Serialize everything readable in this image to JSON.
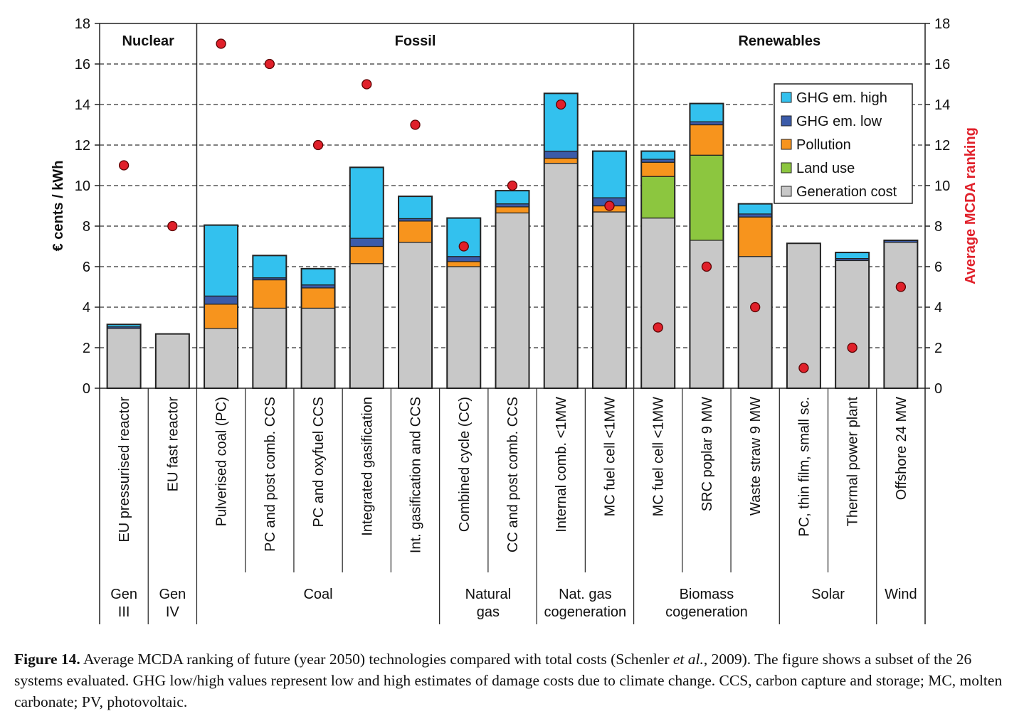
{
  "chart_data": {
    "type": "bar",
    "stacked": true,
    "ylabel_left": "€ cents / kWh",
    "ylabel_right": "Average MCDA ranking",
    "ylim": [
      0,
      18
    ],
    "yticks": [
      0,
      2,
      4,
      6,
      8,
      10,
      12,
      14,
      16,
      18
    ],
    "grid": "horizontal dashed",
    "legend_position": "top-right",
    "sections": [
      {
        "label": "Nuclear",
        "start": 0,
        "end": 1
      },
      {
        "label": "Fossil",
        "start": 2,
        "end": 10
      },
      {
        "label": "Renewables",
        "start": 11,
        "end": 16
      }
    ],
    "groups": [
      {
        "line1": "Gen",
        "line2": "III",
        "start": 0,
        "end": 0
      },
      {
        "line1": "Gen",
        "line2": "IV",
        "start": 1,
        "end": 1
      },
      {
        "line1": "Coal",
        "line2": "",
        "start": 2,
        "end": 6
      },
      {
        "line1": "Natural",
        "line2": "gas",
        "start": 7,
        "end": 8
      },
      {
        "line1": "Nat. gas",
        "line2": "cogeneration",
        "start": 9,
        "end": 10
      },
      {
        "line1": "Biomass",
        "line2": "cogeneration",
        "start": 11,
        "end": 13
      },
      {
        "line1": "Solar",
        "line2": "",
        "start": 14,
        "end": 15
      },
      {
        "line1": "Wind",
        "line2": "",
        "start": 16,
        "end": 16
      }
    ],
    "categories": [
      "EU pressurised reactor",
      "EU fast reactor",
      "Pulverised coal (PC)",
      "PC and post comb. CCS",
      "PC and oxyfuel CCS",
      "Integrated gasification",
      "Int. gasification and CCS",
      "Combined cycle (CC)",
      "CC and post comb. CCS",
      "Internal comb. <1MW",
      "MC fuel cell <1MW",
      "MC fuel cell <1MW",
      "SRC poplar 9 MW",
      "Waste straw 9 MW",
      "PC, thin film, small sc.",
      "Thermal power plant",
      "Offshore 24 MW"
    ],
    "series": [
      {
        "name": "Generation cost",
        "color": "#c8c8c8",
        "values": [
          2.95,
          2.68,
          2.95,
          3.95,
          3.95,
          6.15,
          7.2,
          6.0,
          8.65,
          11.1,
          8.7,
          8.4,
          7.3,
          6.5,
          7.15,
          6.3,
          7.2
        ]
      },
      {
        "name": "Land use",
        "color": "#8cc63f",
        "values": [
          0,
          0,
          0,
          0,
          0,
          0,
          0,
          0,
          0,
          0,
          0,
          2.05,
          4.2,
          0,
          0,
          0,
          0
        ]
      },
      {
        "name": "Pollution",
        "color": "#f7941d",
        "values": [
          0,
          0,
          1.2,
          1.4,
          1.0,
          0.85,
          1.05,
          0.25,
          0.3,
          0.25,
          0.3,
          0.7,
          1.5,
          1.95,
          0,
          0,
          0
        ]
      },
      {
        "name": "GHG em. low",
        "color": "#3b5ba9",
        "values": [
          0.08,
          0,
          0.4,
          0.1,
          0.15,
          0.4,
          0.12,
          0.25,
          0.15,
          0.35,
          0.4,
          0.15,
          0.15,
          0.15,
          0,
          0.1,
          0.1
        ]
      },
      {
        "name": "GHG em. high",
        "color": "#33c1ee",
        "values": [
          0.12,
          0,
          3.5,
          1.1,
          0.8,
          3.5,
          1.1,
          1.9,
          0.65,
          2.85,
          2.3,
          0.4,
          0.9,
          0.5,
          0,
          0.3,
          0
        ]
      }
    ],
    "legend_order": [
      "GHG em. high",
      "GHG em. low",
      "Pollution",
      "Land use",
      "Generation cost"
    ],
    "ranking": {
      "name": "Average MCDA ranking",
      "color": "#e0202a",
      "values": [
        11,
        8,
        17,
        16,
        12,
        15,
        13,
        7,
        10,
        14,
        9,
        3,
        6,
        4,
        1,
        2,
        5
      ]
    }
  },
  "caption": {
    "label": "Figure 14.",
    "text_a": " Average MCDA ranking of future (year 2050) technologies compared with total costs (Schenler ",
    "text_italic": "et al.",
    "text_b": ", 2009). The figure shows a subset of the 26 systems evaluated. GHG low/high values represent low and high estimates of damage costs due to climate change. CCS, carbon capture and storage; MC, molten carbonate; PV, photovoltaic."
  }
}
